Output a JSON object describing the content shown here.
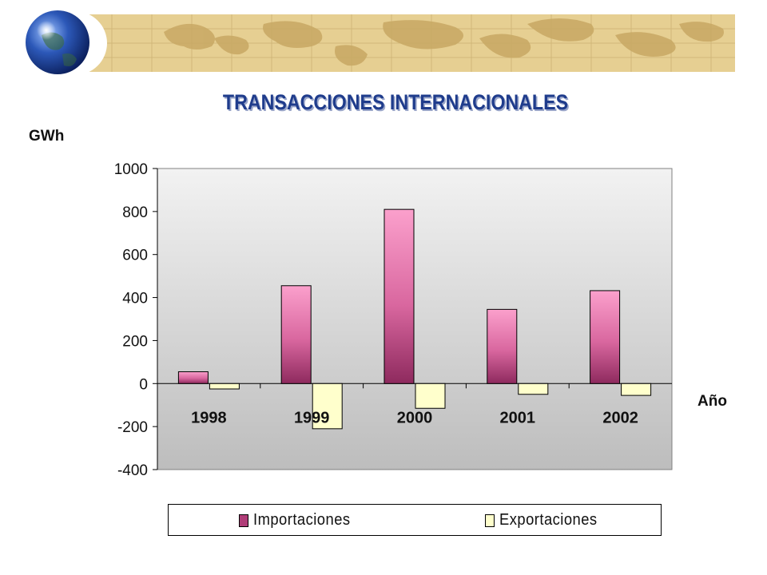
{
  "chart_data": {
    "type": "bar",
    "title": "TRANSACCIONES INTERNACIONALES",
    "ylabel": "GWh",
    "xlabel": "Año",
    "categories": [
      "1998",
      "1999",
      "2000",
      "2001",
      "2002"
    ],
    "series": [
      {
        "name": "Importaciones",
        "values": [
          55,
          455,
          810,
          345,
          432
        ],
        "color": "#b03d78"
      },
      {
        "name": "Exportaciones",
        "values": [
          -25,
          -210,
          -115,
          -50,
          -55
        ],
        "color": "#ffffcc"
      }
    ],
    "ylim": [
      -400,
      1000
    ],
    "yticks": [
      "1000",
      "800",
      "600",
      "400",
      "200",
      "0",
      "-200",
      "-400"
    ],
    "grid": false,
    "legend": "bottom",
    "plot_background": "#c0c0c0"
  }
}
